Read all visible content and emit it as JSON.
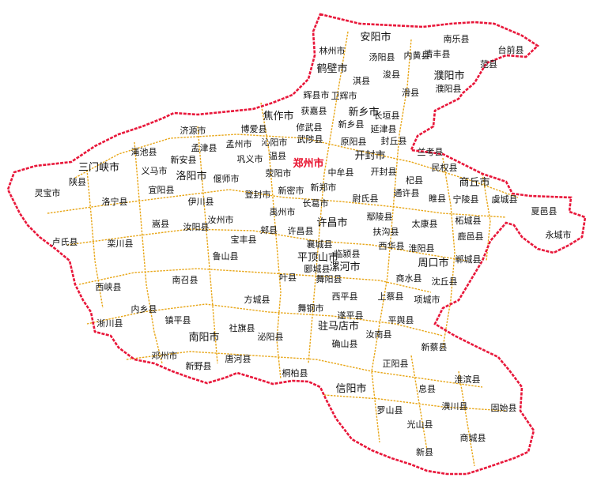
{
  "colors": {
    "province_border": "#e8173a",
    "county_border": "#e8a617",
    "capital_label": "#e8112d",
    "label": "#111111"
  },
  "capital": "郑州市",
  "cities": [
    "安阳市",
    "濮阳市",
    "鹤壁市",
    "新乡市",
    "焦作市",
    "开封市",
    "商丘市",
    "三门峡市",
    "洛阳市",
    "许昌市",
    "平顶山市",
    "漯河市",
    "周口市",
    "驻马店市",
    "南阳市",
    "信阳市"
  ],
  "counties": [
    "南乐县",
    "台前县",
    "范县",
    "清丰县",
    "内黄县",
    "汤阳县",
    "林州市",
    "濮阳县",
    "淇县",
    "浚县",
    "滑县",
    "辉县市",
    "卫辉市",
    "获嘉县",
    "长垣县",
    "济源市",
    "博爱县",
    "修武县",
    "新乡县",
    "延津县",
    "武陟县",
    "原阳县",
    "封丘县",
    "沁阳市",
    "兰考县",
    "孟州市",
    "孟津县",
    "温县",
    "巩义市",
    "渑池县",
    "新安县",
    "义马市",
    "偃师市",
    "荥阳市",
    "中牟县",
    "开封县",
    "民权县",
    "灵宝市",
    "陕县",
    "宜阳县",
    "新密市",
    "新郑市",
    "杞县",
    "睢县",
    "宁陵县",
    "虞城县",
    "登封市",
    "尉氏县",
    "通许县",
    "洛宁县",
    "伊川县",
    "长葛市",
    "鄢陵县",
    "夏邑县",
    "嵩县",
    "汝州市",
    "禹州市",
    "扶沟县",
    "太康县",
    "柘城县",
    "永城市",
    "卢氏县",
    "汝阳县",
    "郏县",
    "许昌县",
    "鹿邑县",
    "宝丰县",
    "襄城县",
    "西华县",
    "淮阳县",
    "栾川县",
    "鲁山县",
    "临颍县",
    "郸城县",
    "叶县",
    "商水县",
    "西峡县",
    "南召县",
    "郾城县",
    "舞阳县",
    "沈丘县",
    "方城县",
    "西平县",
    "上蔡县",
    "项城市",
    "内乡县",
    "舞钢市",
    "镇平县",
    "遂平县",
    "淅川县",
    "社旗县",
    "平舆县",
    "泌阳县",
    "汝南县",
    "确山县",
    "新蔡县",
    "邓州市",
    "新野县",
    "唐河县",
    "正阳县",
    "桐柏县",
    "淮滨县",
    "息县",
    "固始县",
    "潢川县",
    "罗山县",
    "光山县",
    "商城县",
    "新县"
  ]
}
